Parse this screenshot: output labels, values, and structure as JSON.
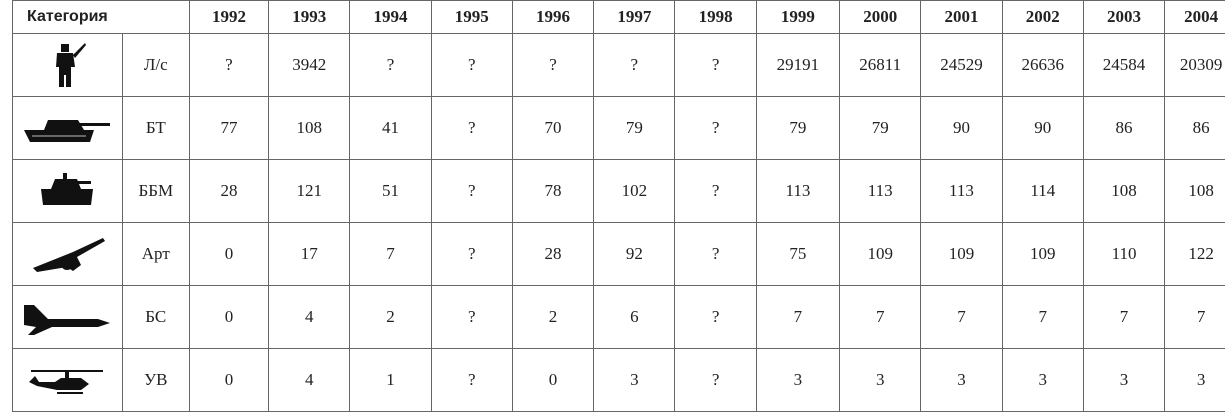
{
  "table": {
    "header": [
      "Категория",
      "1992",
      "1993",
      "1994",
      "1995",
      "1996",
      "1997",
      "1998",
      "1999",
      "2000",
      "2001",
      "2002",
      "2003",
      "2004"
    ],
    "rows": [
      [
        "Л/с",
        "?",
        3942,
        "?",
        "?",
        "?",
        "?",
        "?",
        29191,
        26811,
        24529,
        26636,
        24584,
        20309
      ],
      [
        "БТ",
        77,
        108,
        41,
        "?",
        70,
        79,
        "?",
        79,
        79,
        90,
        90,
        86,
        86
      ],
      [
        "ББМ",
        28,
        121,
        51,
        "?",
        78,
        102,
        "?",
        113,
        113,
        113,
        114,
        108,
        108
      ],
      [
        "Арт",
        0,
        17,
        7,
        "?",
        28,
        92,
        "?",
        75,
        109,
        109,
        109,
        110,
        122
      ],
      [
        "БС",
        0,
        4,
        2,
        "?",
        2,
        6,
        "?",
        7,
        7,
        7,
        7,
        7,
        7
      ],
      [
        "УВ",
        0,
        4,
        1,
        "?",
        0,
        3,
        "?",
        3,
        3,
        3,
        3,
        3,
        3
      ]
    ]
  }
}
